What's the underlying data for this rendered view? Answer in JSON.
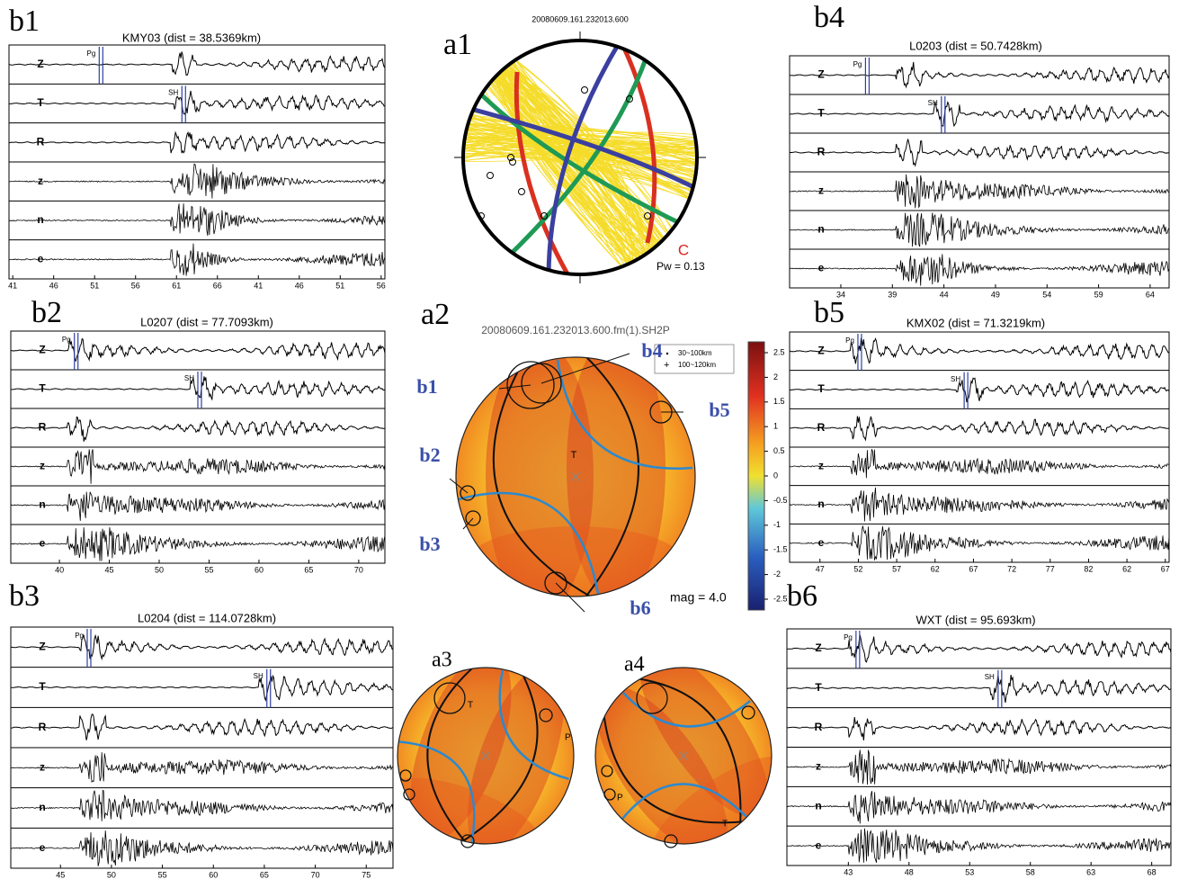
{
  "panels": [
    {
      "label": "b1",
      "title": "KMY03 (dist = 38.5369km)",
      "traces": [
        "Z",
        "T",
        "R",
        "z",
        "n",
        "e"
      ],
      "picks": [
        "Pg",
        "SH"
      ],
      "xticks": [
        "41",
        "46",
        "51",
        "56",
        "61",
        "66",
        "41",
        "46",
        "51",
        "56"
      ]
    },
    {
      "label": "b2",
      "title": "L0207 (dist = 77.7093km)",
      "traces": [
        "Z",
        "T",
        "R",
        "z",
        "n",
        "e"
      ],
      "picks": [
        "Pg",
        "SH"
      ],
      "xticks": [
        "40",
        "45",
        "50",
        "55",
        "60",
        "65",
        "70"
      ]
    },
    {
      "label": "b3",
      "title": "L0204 (dist = 114.0728km)",
      "traces": [
        "Z",
        "T",
        "R",
        "z",
        "n",
        "e"
      ],
      "picks": [
        "Pg",
        "SH"
      ],
      "xticks": [
        "45",
        "50",
        "55",
        "60",
        "65",
        "70",
        "75"
      ]
    },
    {
      "label": "b4",
      "title": "L0203 (dist = 50.7428km)",
      "traces": [
        "Z",
        "T",
        "R",
        "z",
        "n",
        "e"
      ],
      "picks": [
        "Pg",
        "SH"
      ],
      "xticks": [
        "34",
        "39",
        "44",
        "49",
        "54",
        "59",
        "64"
      ]
    },
    {
      "label": "b5",
      "title": "KMX02 (dist = 71.3219km)",
      "traces": [
        "Z",
        "T",
        "R",
        "z",
        "n",
        "e"
      ],
      "picks": [
        "Pg",
        "SH"
      ],
      "xticks": [
        "47",
        "52",
        "57",
        "62",
        "67",
        "72",
        "77",
        "82",
        "62",
        "67"
      ]
    },
    {
      "label": "b6",
      "title": "WXT (dist = 95.693km)",
      "traces": [
        "Z",
        "T",
        "R",
        "z",
        "n",
        "e"
      ],
      "picks": [
        "Pg",
        "SH"
      ],
      "xticks": [
        "43",
        "48",
        "53",
        "58",
        "63",
        "68"
      ]
    }
  ],
  "a1": {
    "label": "a1",
    "title": "20080609.161.232013.600",
    "annotation": "C",
    "pw": "Pw = 0.13"
  },
  "a2": {
    "label": "a2",
    "title": "20080609.161.232013.600.fm(1).SH2P",
    "axis": "T",
    "legend": [
      "30~100km",
      "100~120km"
    ],
    "colorbar_ticks": [
      "2.5",
      "2",
      "1.5",
      "1",
      "0.5",
      "0",
      "-0.5",
      "-1",
      "-1.5",
      "-2",
      "-2.5"
    ],
    "mag": "mag = 4.0",
    "callouts": [
      "b1",
      "b2",
      "b3",
      "b4",
      "b5",
      "b6"
    ]
  },
  "a3": {
    "label": "a3",
    "axes": [
      "T",
      "P"
    ]
  },
  "a4": {
    "label": "a4",
    "axes": [
      "P",
      "T"
    ]
  }
}
